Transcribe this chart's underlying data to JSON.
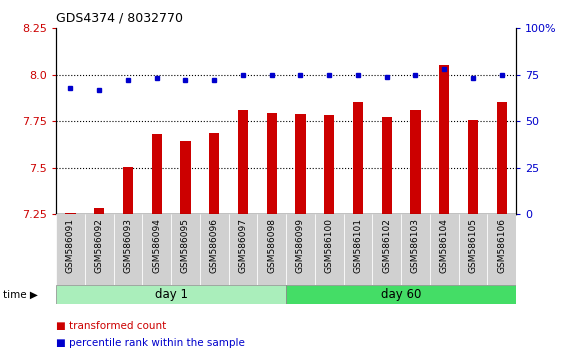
{
  "title": "GDS4374 / 8032770",
  "samples": [
    "GSM586091",
    "GSM586092",
    "GSM586093",
    "GSM586094",
    "GSM586095",
    "GSM586096",
    "GSM586097",
    "GSM586098",
    "GSM586099",
    "GSM586100",
    "GSM586101",
    "GSM586102",
    "GSM586103",
    "GSM586104",
    "GSM586105",
    "GSM586106"
  ],
  "transformed_counts": [
    7.255,
    7.285,
    7.505,
    7.68,
    7.645,
    7.685,
    7.81,
    7.795,
    7.79,
    7.785,
    7.855,
    7.775,
    7.81,
    8.05,
    7.755,
    7.855
  ],
  "percentile_ranks": [
    68,
    67,
    72,
    73,
    72,
    72,
    75,
    75,
    75,
    75,
    75,
    74,
    75,
    78,
    73,
    75
  ],
  "day1_indices": [
    0,
    1,
    2,
    3,
    4,
    5,
    6,
    7
  ],
  "day60_indices": [
    8,
    9,
    10,
    11,
    12,
    13,
    14,
    15
  ],
  "ylim_left": [
    7.25,
    8.25
  ],
  "ylim_right": [
    0,
    100
  ],
  "yticks_left": [
    7.25,
    7.5,
    7.75,
    8.0,
    8.25
  ],
  "yticks_right": [
    0,
    25,
    50,
    75,
    100
  ],
  "ytick_labels_right": [
    "0",
    "25",
    "50",
    "75",
    "100%"
  ],
  "bar_color": "#cc0000",
  "dot_color": "#0000cc",
  "day1_color": "#aaeebb",
  "day60_color": "#44dd66",
  "grid_dotted_at": [
    7.5,
    7.75,
    8.0
  ],
  "legend_bar_label": "transformed count",
  "legend_dot_label": "percentile rank within the sample",
  "bar_width": 0.35
}
